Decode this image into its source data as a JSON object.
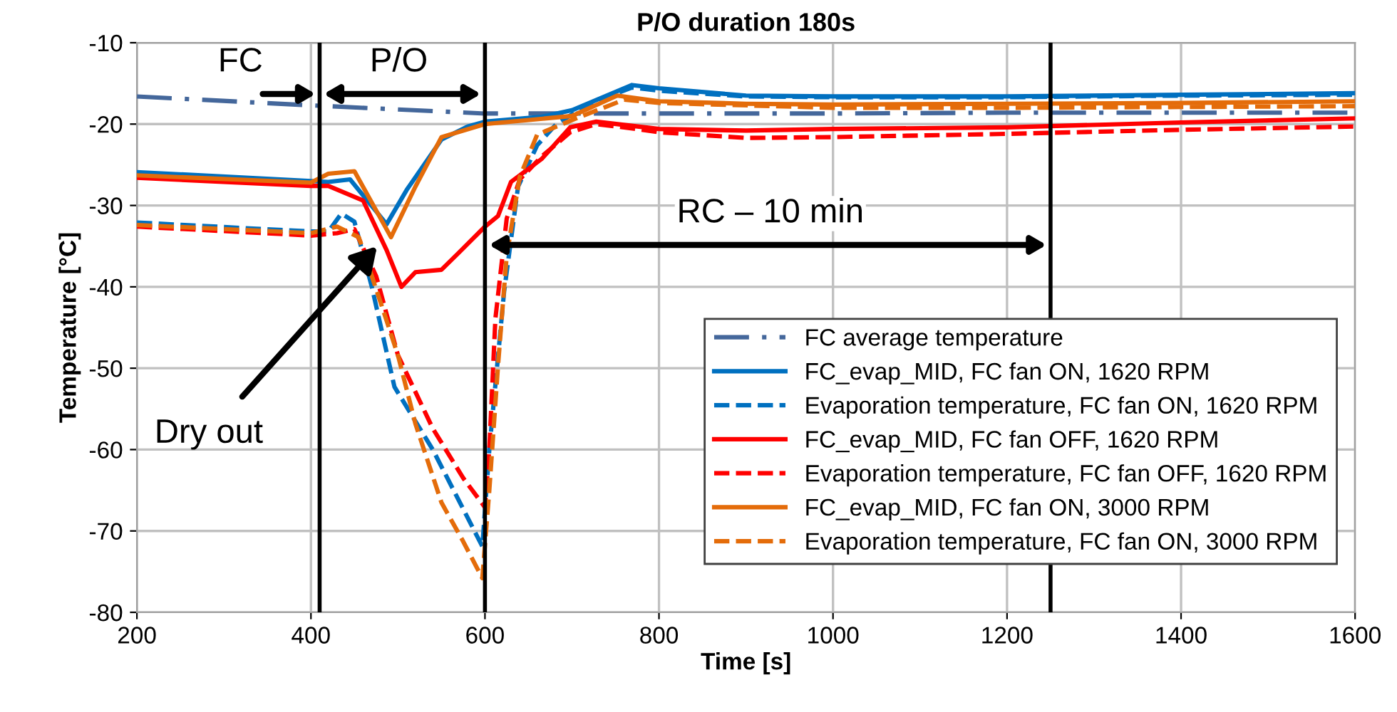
{
  "chart_data": {
    "type": "line",
    "title": "P/O duration 180s",
    "xlabel": "Time [s]",
    "ylabel": "Temperature [°C]",
    "xlim": [
      200,
      1600
    ],
    "xticks": [
      200,
      400,
      600,
      800,
      1000,
      1200,
      1400,
      1600
    ],
    "ylim": [
      -80,
      -10
    ],
    "yticks": [
      -80,
      -70,
      -60,
      -50,
      -40,
      -30,
      -20,
      -10
    ],
    "grid": true,
    "legend": "bottom right",
    "marker": "none",
    "series": [
      {
        "name": "FC average temperature",
        "color": "#44679b",
        "line_style": "dashdot",
        "x": [
          200,
          400,
          600,
          800,
          1000,
          1200,
          1400,
          1600
        ],
        "values": [
          -16.6,
          -17.7,
          -18.7,
          -18.7,
          -18.7,
          -18.6,
          -18.6,
          -18.6
        ]
      },
      {
        "name": "FC_evap_MID, FC fan ON, 1620 RPM",
        "color": "#0070c0",
        "line_style": "solid",
        "x": [
          200,
          420,
          445,
          487,
          510,
          550,
          580,
          600,
          665,
          700,
          769,
          800,
          900,
          1000,
          1200,
          1400,
          1600
        ],
        "values": [
          -25.9,
          -27.1,
          -26.8,
          -32.3,
          -28.1,
          -21.9,
          -20.3,
          -19.7,
          -19.1,
          -18.3,
          -15.2,
          -15.6,
          -16.5,
          -16.6,
          -16.6,
          -16.4,
          -16.2
        ]
      },
      {
        "name": "Evaporation temperature, FC fan ON, 1620 RPM",
        "color": "#0070c0",
        "line_style": "dashed",
        "x": [
          200,
          400,
          420,
          435,
          450,
          470,
          496,
          540,
          597,
          605,
          622,
          638,
          660,
          682,
          720,
          769,
          800,
          900,
          1000,
          1200,
          1400,
          1600
        ],
        "values": [
          -32.1,
          -33.2,
          -33.2,
          -31,
          -32,
          -40,
          -52.3,
          -60,
          -71.9,
          -60,
          -40.6,
          -27.7,
          -22.6,
          -20,
          -17.5,
          -15.5,
          -15.9,
          -16.6,
          -16.7,
          -16.7,
          -16.5,
          -16.4
        ]
      },
      {
        "name": "FC_evap_MID, FC fan OFF, 1620 RPM",
        "color": "#ff0000",
        "line_style": "solid",
        "x": [
          200,
          400,
          420,
          460,
          487,
          504,
          520,
          550,
          570,
          600,
          615,
          630,
          665,
          698,
          728,
          800,
          900,
          1000,
          1200,
          1400,
          1600
        ],
        "values": [
          -26.6,
          -27.6,
          -27.6,
          -29.4,
          -35.5,
          -40,
          -38.2,
          -37.9,
          -35.8,
          -32.6,
          -31.3,
          -27.1,
          -24.3,
          -20.4,
          -19.7,
          -20.6,
          -20.8,
          -20.6,
          -20.4,
          -19.8,
          -19.3
        ]
      },
      {
        "name": "Evaporation temperature, FC fan OFF, 1620 RPM",
        "color": "#ff0000",
        "line_style": "dashed",
        "x": [
          200,
          400,
          430,
          450,
          475,
          500,
          540,
          575,
          600,
          605,
          612,
          625,
          640,
          665,
          698,
          728,
          760,
          800,
          900,
          1000,
          1200,
          1400,
          1600
        ],
        "values": [
          -32.6,
          -33.7,
          -33.4,
          -32.9,
          -38.7,
          -48.4,
          -57.4,
          -63.5,
          -67.1,
          -60,
          -43.9,
          -31.6,
          -26.8,
          -24,
          -21,
          -20,
          -20.4,
          -21,
          -21.7,
          -21.6,
          -21.2,
          -20.7,
          -20.3
        ]
      },
      {
        "name": "FC_evap_MID, FC fan ON, 3000 RPM",
        "color": "#e46c0a",
        "line_style": "solid",
        "x": [
          200,
          400,
          420,
          450,
          492,
          520,
          550,
          600,
          700,
          752,
          800,
          900,
          1000,
          1200,
          1400,
          1600
        ],
        "values": [
          -26.3,
          -27.2,
          -26.1,
          -25.8,
          -33.9,
          -27.7,
          -21.6,
          -20,
          -19,
          -16.5,
          -17.2,
          -17.5,
          -17.6,
          -17.5,
          -17.4,
          -17.2
        ]
      },
      {
        "name": "Evaporation temperature, FC fan ON, 3000 RPM",
        "color": "#e46c0a",
        "line_style": "dashed",
        "x": [
          200,
          400,
          430,
          455,
          480,
          500,
          520,
          550,
          575,
          597,
          605,
          615,
          625,
          640,
          660,
          700,
          760,
          800,
          1000,
          1200,
          1400,
          1600
        ],
        "values": [
          -32.4,
          -33.4,
          -32.6,
          -33.9,
          -41.9,
          -48.4,
          -56.8,
          -66.5,
          -71.3,
          -75.8,
          -65,
          -49.7,
          -36.1,
          -26.5,
          -21.3,
          -19.5,
          -17,
          -17.4,
          -18,
          -18,
          -17.9,
          -17.8
        ]
      }
    ],
    "ref_lines": [
      {
        "axis": "x",
        "value": 410,
        "color": "#000000"
      },
      {
        "axis": "x",
        "value": 600,
        "color": "#000000"
      },
      {
        "axis": "x",
        "value": 1250,
        "color": "#000000"
      }
    ],
    "annotations": [
      "FC",
      "P/O",
      "RC – 10 min",
      {
        "text": "Dry out",
        "x": 476,
        "y": -35
      }
    ]
  }
}
